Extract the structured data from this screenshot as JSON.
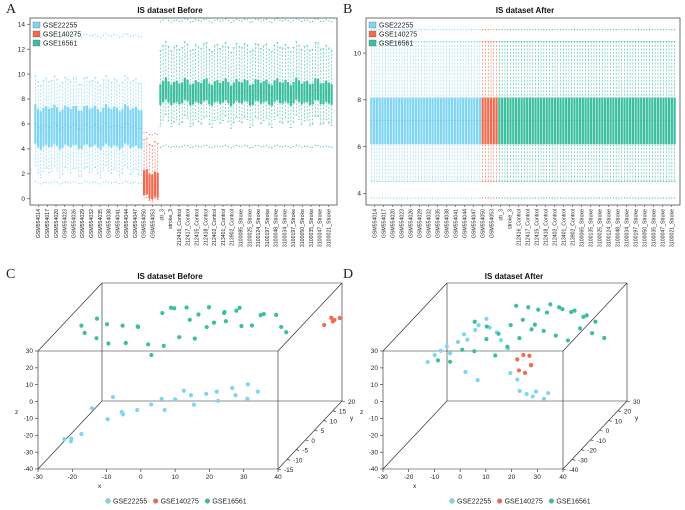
{
  "colors": {
    "GSE22255": "#7fd5f4",
    "GSE140275": "#f26b4e",
    "GSE16561": "#3bbf9f"
  },
  "chart_data": [
    {
      "type": "box",
      "panel": "A",
      "title": "IS dataset Before",
      "ylim": [
        -0.5,
        14.5
      ],
      "yticks": [
        0,
        2,
        4,
        6,
        8,
        10,
        12,
        14
      ],
      "legend": [
        "GSE22255",
        "GSE140275",
        "GSE16561"
      ],
      "xlabels": [
        "GSM554014",
        "GSM554017",
        "GSM554020",
        "GSM554023",
        "GSM554026",
        "GSM554029",
        "GSM554032",
        "GSM554035",
        "GSM554038",
        "GSM554041",
        "GSM554044",
        "GSM554047",
        "GSM554050",
        "GSM554053",
        "ctr_3",
        "stroke_3",
        "212416_Control",
        "212417_Control",
        "212415_Control",
        "212418_Control",
        "212402_Control",
        "213401_Control",
        "213902_Control",
        "3100085_Stroke",
        "3100025_Stroke",
        "3100124_Stroke",
        "3100197_Stroke",
        "3100048_Stroke",
        "3100034_Stroke",
        "3100197_Stroke",
        "3100050_Stroke",
        "3100035_Stroke",
        "3100047_Stroke",
        "3100021_Stroke"
      ],
      "groups": [
        {
          "name": "GSE22255",
          "samples": 40,
          "median": 5.8,
          "q1": 4.2,
          "q3": 7.3,
          "whisker_low": 2.2,
          "whisker_high": 9.5,
          "out_low": 1.3,
          "out_high": 13.1
        },
        {
          "name": "GSE140275",
          "samples": 6,
          "median": 1.1,
          "q1": 0.1,
          "q3": 2.1,
          "whisker_low": 0.0,
          "whisker_high": 4.5,
          "out_low": 0.0,
          "out_high": 5.2
        },
        {
          "name": "GSE16561",
          "samples": 64,
          "median": 8.5,
          "q1": 7.7,
          "q3": 9.4,
          "whisker_low": 6.2,
          "whisker_high": 12.2,
          "out_low": 4.2,
          "out_high": 14.3
        }
      ]
    },
    {
      "type": "box",
      "panel": "B",
      "title": "IS dataset After",
      "ylim": [
        3.5,
        11.5
      ],
      "yticks": [
        4,
        6,
        8,
        10
      ],
      "legend": [
        "GSE22255",
        "GSE140275",
        "GSE16561"
      ],
      "xlabels": [
        "GSM554014",
        "GSM554017",
        "GSM554020",
        "GSM554023",
        "GSM554026",
        "GSM554029",
        "GSM554032",
        "GSM554035",
        "GSM554038",
        "GSM554041",
        "GSM554044",
        "GSM554047",
        "GSM554050",
        "GSM554053",
        "ctr_3",
        "stroke_3",
        "212416_Control",
        "212417_Control",
        "212415_Control",
        "212418_Control",
        "212402_Control",
        "213401_Control",
        "213902_Control",
        "3100065_Stroke",
        "3100135_Stroke",
        "3100025_Stroke",
        "3100124_Stroke",
        "3100048_Stroke",
        "3100034_Stroke",
        "3100197_Stroke",
        "3100050_Stroke",
        "3100035_Stroke",
        "3100047_Stroke",
        "3100021_Stroke"
      ],
      "groups": [
        {
          "name": "GSE22255",
          "samples": 40,
          "median": 7.1,
          "q1": 6.1,
          "q3": 8.1,
          "whisker_low": 4.5,
          "whisker_high": 10.5,
          "out_low": 3.8,
          "out_high": 11.0
        },
        {
          "name": "GSE140275",
          "samples": 6,
          "median": 7.1,
          "q1": 6.1,
          "q3": 8.1,
          "whisker_low": 4.5,
          "whisker_high": 10.5,
          "out_low": 3.8,
          "out_high": 11.0
        },
        {
          "name": "GSE16561",
          "samples": 64,
          "median": 7.1,
          "q1": 6.1,
          "q3": 8.1,
          "whisker_low": 4.5,
          "whisker_high": 10.5,
          "out_low": 3.8,
          "out_high": 11.0
        }
      ]
    },
    {
      "type": "scatter3d",
      "panel": "C",
      "title": "IS dataset Before",
      "xlabel": "x",
      "ylabel": "y",
      "zlabel": "z",
      "xlim": [
        -30,
        40
      ],
      "ylim": [
        -15,
        20
      ],
      "zlim": [
        -40,
        30
      ],
      "xticks": [
        -30,
        -20,
        -10,
        0,
        10,
        20,
        30,
        40
      ],
      "yticks": [
        -15,
        -10,
        -5,
        0,
        5,
        10,
        15,
        20
      ],
      "zticks": [
        -40,
        -30,
        -20,
        -10,
        0,
        10,
        20,
        30
      ],
      "legend": [
        "GSE22255",
        "GSE140275",
        "GSE16561"
      ],
      "series": [
        {
          "name": "GSE22255",
          "points": [
            [
              -25,
              -10,
              -28
            ],
            [
              -24,
              -8,
              -30
            ],
            [
              -22,
              -12,
              -27
            ],
            [
              -20,
              -10,
              -25
            ],
            [
              -15,
              -5,
              -22
            ],
            [
              -12,
              -3,
              -20
            ],
            [
              -10,
              -6,
              -18
            ],
            [
              -8,
              -2,
              -20
            ],
            [
              -5,
              0,
              -19
            ],
            [
              -3,
              2,
              -18
            ],
            [
              0,
              -2,
              -20
            ],
            [
              2,
              0,
              -16
            ],
            [
              5,
              3,
              -17
            ],
            [
              8,
              -1,
              -18
            ],
            [
              10,
              2,
              -15
            ],
            [
              12,
              4,
              -16
            ],
            [
              14,
              1,
              -18
            ],
            [
              16,
              5,
              -15
            ],
            [
              18,
              3,
              -17
            ],
            [
              20,
              6,
              -14
            ],
            [
              22,
              2,
              -18
            ],
            [
              24,
              4,
              -16
            ],
            [
              -18,
              -8,
              -12
            ],
            [
              -14,
              -4,
              -10
            ],
            [
              4,
              1,
              -12
            ]
          ]
        },
        {
          "name": "GSE140275",
          "points": [
            [
              38,
              14,
              12
            ],
            [
              40,
              15,
              13
            ],
            [
              39,
              16,
              14
            ],
            [
              41,
              14,
              15
            ],
            [
              42,
              15,
              15
            ]
          ]
        },
        {
          "name": "GSE16561",
          "points": [
            [
              -28,
              5,
              22
            ],
            [
              -26,
              3,
              20
            ],
            [
              -24,
              6,
              25
            ],
            [
              -22,
              2,
              18
            ],
            [
              -20,
              4,
              24
            ],
            [
              -18,
              1,
              16
            ],
            [
              -16,
              5,
              22
            ],
            [
              -14,
              3,
              14
            ],
            [
              -12,
              6,
              20
            ],
            [
              -10,
              2,
              25
            ],
            [
              -6,
              8,
              26
            ],
            [
              -4,
              9,
              28
            ],
            [
              -2,
              7,
              30
            ],
            [
              0,
              10,
              27
            ],
            [
              2,
              8,
              22
            ],
            [
              4,
              9,
              24
            ],
            [
              6,
              11,
              26
            ],
            [
              8,
              10,
              18
            ],
            [
              10,
              12,
              22
            ],
            [
              12,
              9,
              20
            ],
            [
              14,
              11,
              24
            ],
            [
              16,
              10,
              16
            ],
            [
              18,
              12,
              14
            ],
            [
              20,
              13,
              19
            ],
            [
              22,
              11,
              22
            ],
            [
              24,
              14,
              18
            ],
            [
              26,
              13,
              12
            ],
            [
              28,
              12,
              10
            ],
            [
              -8,
              4,
              12
            ],
            [
              -6,
              2,
              8
            ],
            [
              -4,
              5,
              10
            ],
            [
              0,
              6,
              14
            ],
            [
              4,
              7,
              12
            ],
            [
              8,
              6,
              20
            ],
            [
              12,
              8,
              26
            ],
            [
              16,
              9,
              28
            ]
          ]
        }
      ]
    },
    {
      "type": "scatter3d",
      "panel": "D",
      "title": "IS dataset After",
      "xlabel": "x",
      "ylabel": "y",
      "zlabel": "z",
      "xlim": [
        -30,
        40
      ],
      "ylim": [
        -40,
        30
      ],
      "zlim": [
        -40,
        30
      ],
      "xticks": [
        -30,
        -20,
        -10,
        0,
        10,
        20,
        30,
        40
      ],
      "yticks": [
        -40,
        -30,
        -20,
        -10,
        0,
        10,
        20,
        30
      ],
      "zticks": [
        -40,
        -30,
        -20,
        -10,
        0,
        10,
        20,
        30
      ],
      "legend": [
        "GSE22255",
        "GSE140275",
        "GSE16561"
      ],
      "series": [
        {
          "name": "GSE22255",
          "points": [
            [
              -22,
              -6,
              8
            ],
            [
              -20,
              -5,
              10
            ],
            [
              -18,
              -4,
              12
            ],
            [
              -16,
              -6,
              9
            ],
            [
              -14,
              -3,
              14
            ],
            [
              -12,
              -2,
              18
            ],
            [
              -10,
              -4,
              16
            ],
            [
              -8,
              -1,
              20
            ],
            [
              -6,
              -3,
              24
            ],
            [
              -4,
              0,
              26
            ],
            [
              -2,
              -2,
              22
            ],
            [
              0,
              0,
              18
            ],
            [
              2,
              -1,
              14
            ],
            [
              4,
              1,
              8
            ],
            [
              6,
              -2,
              -5
            ],
            [
              8,
              0,
              -10
            ],
            [
              10,
              -3,
              -15
            ],
            [
              12,
              -1,
              -18
            ],
            [
              14,
              0,
              -20
            ],
            [
              16,
              -2,
              -16
            ],
            [
              18,
              1,
              -22
            ],
            [
              20,
              0,
              -18
            ],
            [
              -24,
              -8,
              5
            ],
            [
              -10,
              -6,
              -2
            ],
            [
              -6,
              -4,
              -8
            ]
          ]
        },
        {
          "name": "GSE140275",
          "points": [
            [
              8,
              0,
              2
            ],
            [
              10,
              1,
              4
            ],
            [
              12,
              2,
              3
            ],
            [
              9,
              -1,
              -4
            ],
            [
              11,
              0,
              -6
            ],
            [
              13,
              1,
              -2
            ]
          ]
        },
        {
          "name": "GSE16561",
          "points": [
            [
              -20,
              -8,
              6
            ],
            [
              -16,
              -6,
              4
            ],
            [
              -12,
              -4,
              10
            ],
            [
              -8,
              -2,
              8
            ],
            [
              -4,
              0,
              14
            ],
            [
              0,
              2,
              16
            ],
            [
              4,
              4,
              20
            ],
            [
              8,
              6,
              22
            ],
            [
              12,
              8,
              18
            ],
            [
              16,
              10,
              24
            ],
            [
              20,
              12,
              26
            ],
            [
              24,
              14,
              22
            ],
            [
              28,
              16,
              18
            ],
            [
              32,
              18,
              14
            ],
            [
              -2,
              4,
              2
            ],
            [
              2,
              6,
              6
            ],
            [
              6,
              8,
              10
            ],
            [
              10,
              10,
              14
            ],
            [
              14,
              12,
              12
            ],
            [
              18,
              14,
              8
            ],
            [
              22,
              16,
              4
            ],
            [
              26,
              18,
              10
            ],
            [
              30,
              20,
              6
            ],
            [
              34,
              22,
              2
            ],
            [
              14,
              6,
              28
            ],
            [
              18,
              8,
              30
            ],
            [
              22,
              10,
              26
            ],
            [
              26,
              12,
              24
            ],
            [
              30,
              14,
              20
            ],
            [
              4,
              10,
              28
            ],
            [
              8,
              12,
              26
            ],
            [
              -6,
              6,
              18
            ],
            [
              -10,
              4,
              22
            ]
          ]
        }
      ]
    }
  ]
}
